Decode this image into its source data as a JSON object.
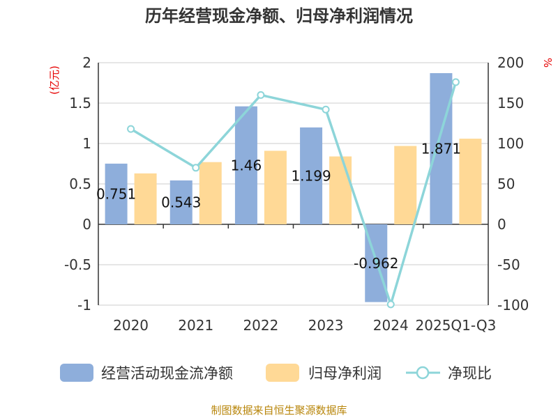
{
  "chart_data": {
    "type": "bar",
    "title": "历年经营现金净额、归母净利润情况",
    "categories": [
      "2020",
      "2021",
      "2022",
      "2023",
      "2024",
      "2025Q1-Q3"
    ],
    "series": [
      {
        "name": "经营活动现金流净额",
        "kind": "bar",
        "axis": "left",
        "color": "#8eaedb",
        "values": [
          0.751,
          0.543,
          1.46,
          1.199,
          -0.962,
          1.871
        ],
        "labels": [
          "0.751",
          "0.543",
          "1.46",
          "1.199",
          "-0.962",
          "1.871"
        ]
      },
      {
        "name": "归母净利润",
        "kind": "bar",
        "axis": "left",
        "color": "#ffd996",
        "values": [
          0.63,
          0.77,
          0.91,
          0.84,
          0.97,
          1.06
        ]
      },
      {
        "name": "净现比",
        "kind": "line",
        "axis": "right",
        "color": "#8dd5d9",
        "values": [
          118,
          70,
          160,
          142,
          -99,
          176
        ]
      }
    ],
    "left_axis": {
      "unit": "(亿元)",
      "ylim": [
        -1,
        2
      ],
      "ticks": [
        "2",
        "1.5",
        "1",
        "0.5",
        "0",
        "-0.5",
        "-1"
      ]
    },
    "right_axis": {
      "unit": "%",
      "ylim": [
        -100,
        200
      ],
      "ticks": [
        "200",
        "150",
        "100",
        "50",
        "0",
        "-50",
        "-100"
      ]
    },
    "grid": true,
    "legend_position": "bottom"
  },
  "source": "制图数据来自恒生聚源数据库"
}
